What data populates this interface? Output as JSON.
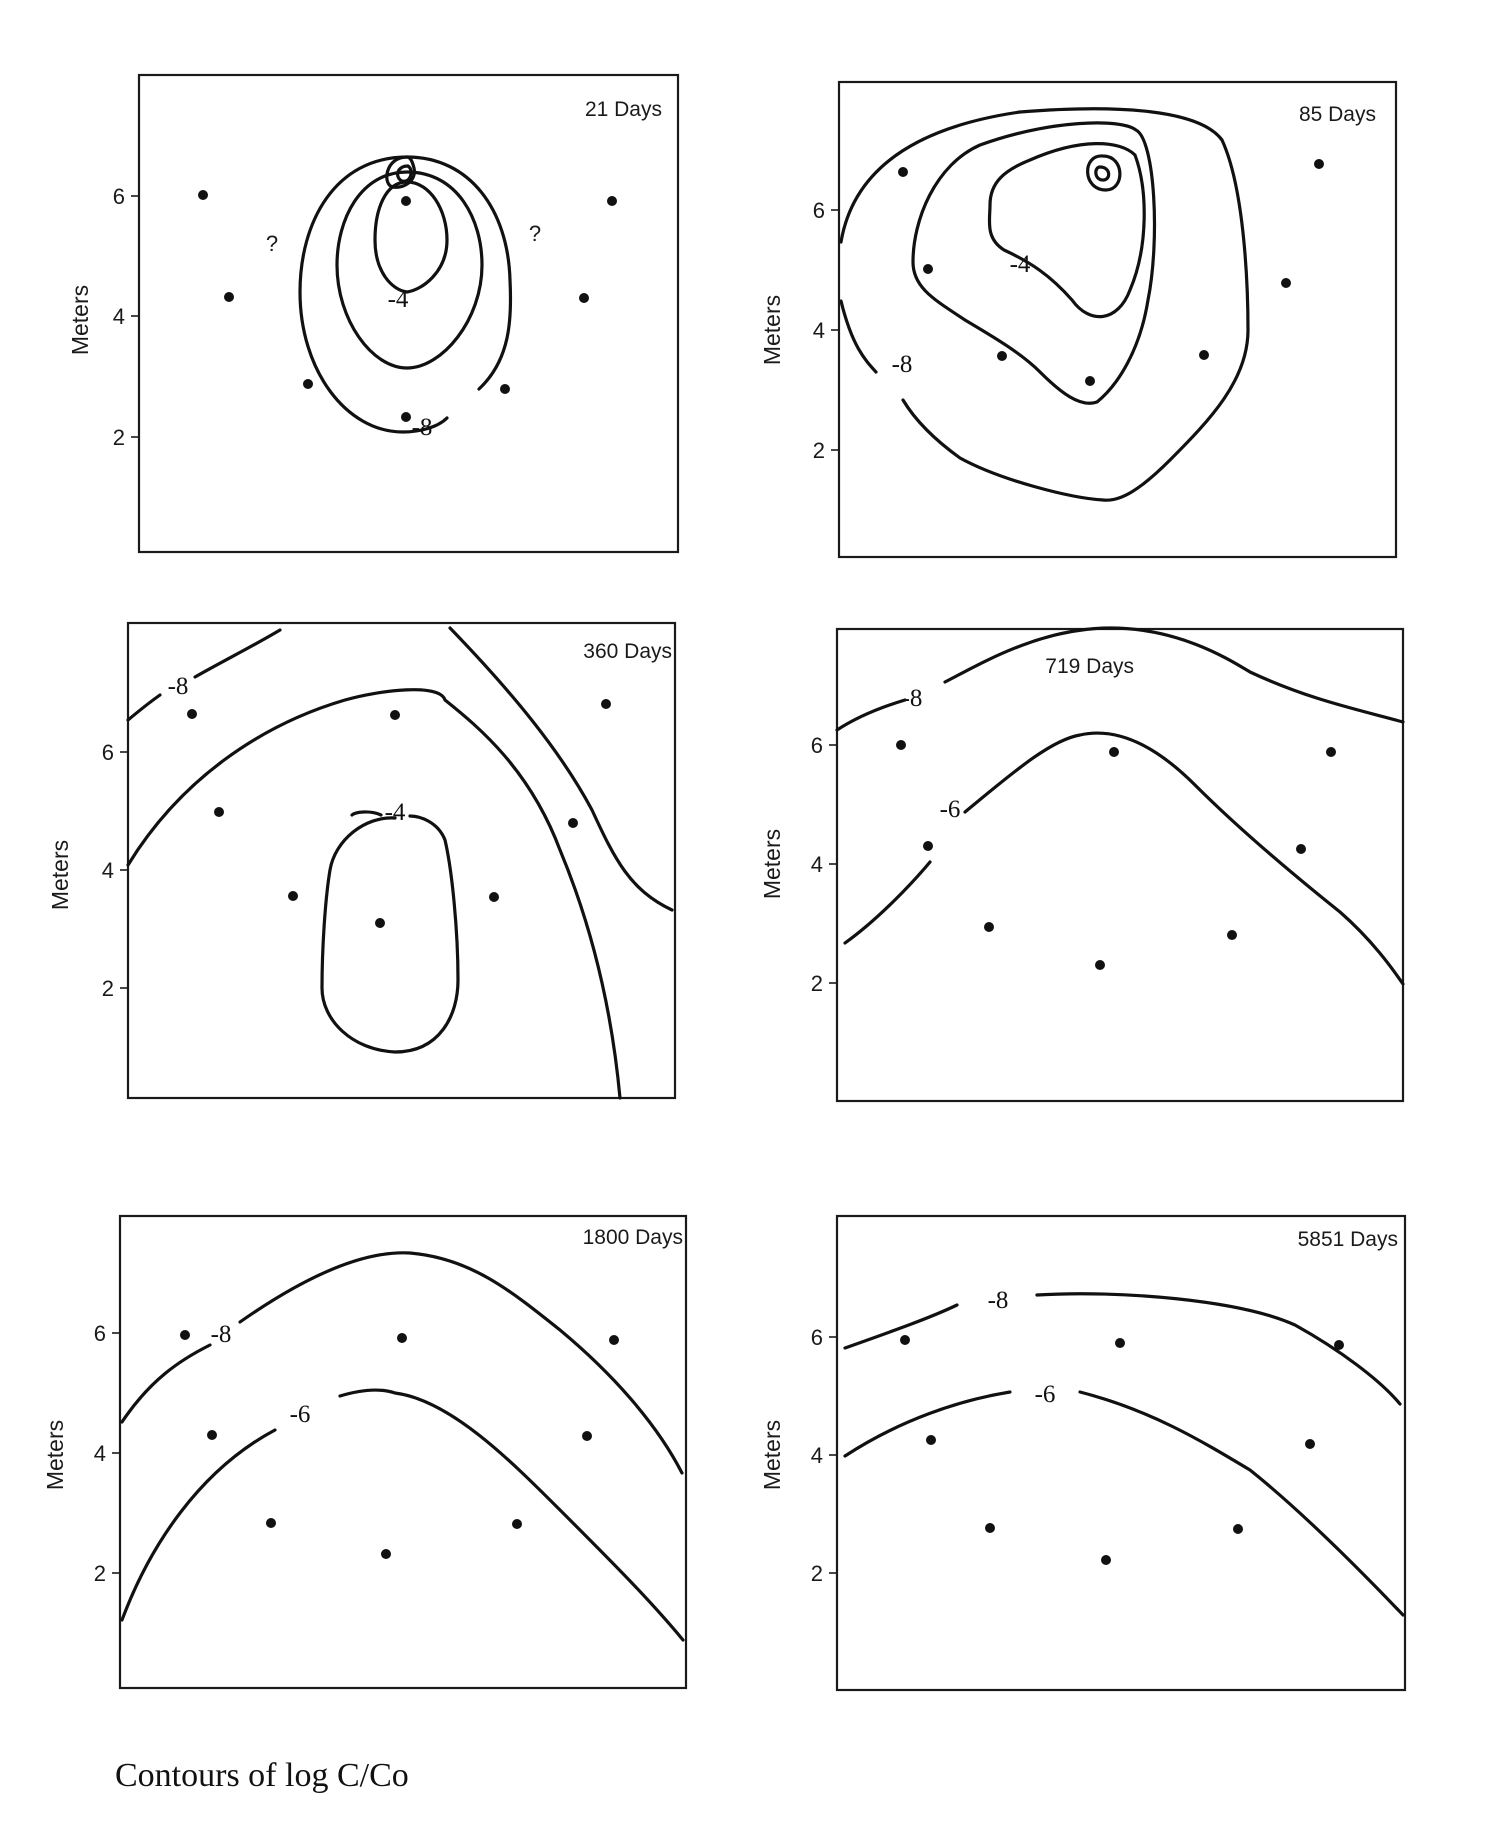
{
  "caption": "Contours of log C/Co",
  "chart_data": [
    {
      "type": "contour",
      "panel_title": "21 Days",
      "ylabel": "Meters",
      "yticks": [
        2,
        4,
        6
      ],
      "contour_labels": [
        "-4",
        "-8"
      ],
      "annotations": [
        "?",
        "?"
      ]
    },
    {
      "type": "contour",
      "panel_title": "85 Days",
      "ylabel": "Meters",
      "yticks": [
        2,
        4,
        6
      ],
      "contour_labels": [
        "-4",
        "-8"
      ]
    },
    {
      "type": "contour",
      "panel_title": "360 Days",
      "ylabel": "Meters",
      "yticks": [
        2,
        4,
        6
      ],
      "contour_labels": [
        "-8",
        "-4"
      ]
    },
    {
      "type": "contour",
      "panel_title": "719 Days",
      "ylabel": "Meters",
      "yticks": [
        2,
        4,
        6
      ],
      "contour_labels": [
        "-8",
        "-6"
      ]
    },
    {
      "type": "contour",
      "panel_title": "1800 Days",
      "ylabel": "Meters",
      "yticks": [
        2,
        4,
        6
      ],
      "contour_labels": [
        "-8",
        "-6"
      ]
    },
    {
      "type": "contour",
      "panel_title": "5851 Days",
      "ylabel": "Meters",
      "yticks": [
        2,
        4,
        6
      ],
      "contour_labels": [
        "-8",
        "-6"
      ]
    }
  ]
}
